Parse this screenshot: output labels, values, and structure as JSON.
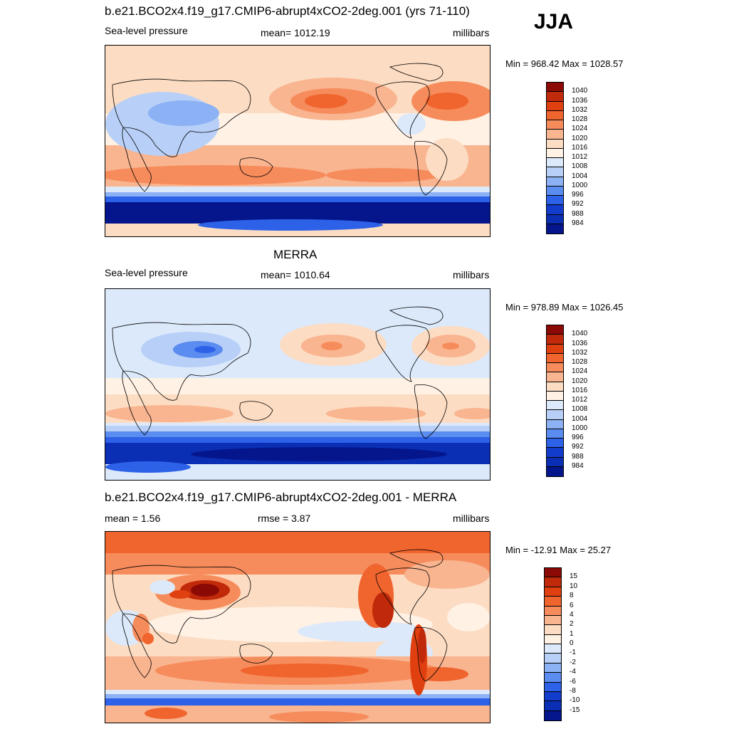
{
  "season": "JJA",
  "panels": [
    {
      "title": "b.e21.BCO2x4.f19_g17.CMIP6-abrupt4xCO2-2deg.001 (yrs 71-110)",
      "left_label": "Sea-level pressure",
      "center_label": "mean= 1012.19",
      "right_label": "millibars",
      "minmax": "Min = 968.42 Max = 1028.57"
    },
    {
      "title": "MERRA",
      "left_label": "Sea-level pressure",
      "center_label": "mean= 1010.64",
      "right_label": "millibars",
      "minmax": "Min = 978.89 Max = 1026.45"
    },
    {
      "title": "b.e21.BCO2x4.f19_g17.CMIP6-abrupt4xCO2-2deg.001 - MERRA",
      "left_label": "mean =   1.56",
      "center_label": "rmse =   3.87",
      "right_label": "millibars",
      "minmax": "Min = -12.91 Max =  25.27"
    }
  ],
  "colorbars": {
    "abs": {
      "labels": [
        "1040",
        "1036",
        "1032",
        "1028",
        "1024",
        "1020",
        "1016",
        "1012",
        "1008",
        "1004",
        "1000",
        "996",
        "992",
        "988",
        "984"
      ],
      "colors": [
        "#8c0a05",
        "#c02a0a",
        "#e0400f",
        "#f0642e",
        "#f68c5c",
        "#f9b490",
        "#fcdcc2",
        "#fff1e4",
        "#dce9fb",
        "#b8d0f8",
        "#8cb2f5",
        "#5b8cf0",
        "#2c61e8",
        "#123ccc",
        "#0a2fb4",
        "#05168c"
      ]
    },
    "diff": {
      "labels": [
        "15",
        "10",
        "8",
        "6",
        "4",
        "2",
        "1",
        "0",
        "-1",
        "-2",
        "-4",
        "-6",
        "-8",
        "-10",
        "-15"
      ],
      "colors": [
        "#8c0a05",
        "#c02a0a",
        "#e0400f",
        "#f0642e",
        "#f68c5c",
        "#f9b490",
        "#fcdcc2",
        "#fff1e4",
        "#dce9fb",
        "#b8d0f8",
        "#8cb2f5",
        "#5b8cf0",
        "#2c61e8",
        "#123ccc",
        "#0a2fb4",
        "#05168c"
      ]
    }
  }
}
